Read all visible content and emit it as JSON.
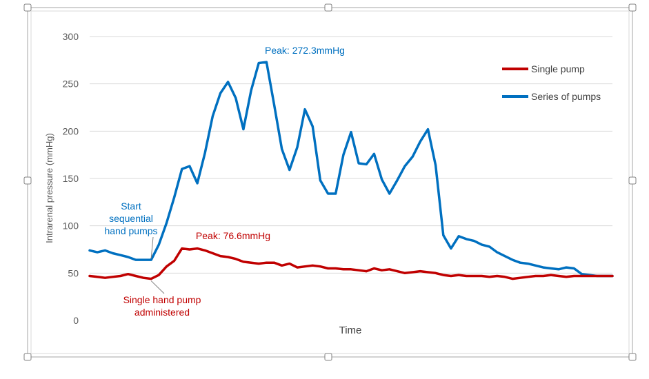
{
  "chart_data": {
    "type": "line",
    "title": "",
    "xlabel": "Time",
    "ylabel": "Intrarenal pressure (mmHg)",
    "ylim": [
      0,
      300
    ],
    "yticks": [
      0,
      50,
      100,
      150,
      200,
      250,
      300
    ],
    "grid": true,
    "legend_position": "top-right",
    "x": [
      0,
      1,
      2,
      3,
      4,
      5,
      6,
      7,
      8,
      9,
      10,
      11,
      12,
      13,
      14,
      15,
      16,
      17,
      18,
      19,
      20,
      21,
      22,
      23,
      24,
      25,
      26,
      27,
      28,
      29,
      30,
      31,
      32,
      33,
      34,
      35,
      36,
      37,
      38,
      39,
      40,
      41,
      42,
      43,
      44,
      45,
      46,
      47,
      48,
      49,
      50,
      51,
      52,
      53,
      54,
      55,
      56,
      57,
      58,
      59,
      60,
      61,
      62,
      63,
      64,
      65,
      66,
      67,
      68
    ],
    "series": [
      {
        "name": "Single pump",
        "color": "#c00000",
        "values": [
          47,
          46,
          45,
          46,
          47,
          49,
          47,
          45,
          44,
          48,
          57,
          63,
          76,
          75,
          76,
          74,
          71,
          68,
          67,
          65,
          62,
          61,
          60,
          61,
          61,
          58,
          60,
          56,
          57,
          58,
          57,
          55,
          55,
          54,
          54,
          53,
          52,
          55,
          53,
          54,
          52,
          50,
          51,
          52,
          51,
          50,
          48,
          47,
          48,
          47,
          47,
          47,
          46,
          47,
          46,
          44,
          45,
          46,
          47,
          47,
          48,
          47,
          46,
          47,
          47,
          47,
          47,
          47,
          47
        ]
      },
      {
        "name": "Series of pumps",
        "color": "#0070c0",
        "values": [
          74,
          72,
          74,
          71,
          69,
          67,
          64,
          64,
          64,
          80,
          103,
          130,
          160,
          163,
          145,
          177,
          216,
          240,
          252,
          235,
          202,
          243,
          272,
          273,
          228,
          181,
          159,
          183,
          223,
          205,
          148,
          134,
          134,
          175,
          199,
          166,
          165,
          176,
          149,
          134,
          148,
          163,
          173,
          189,
          202,
          164,
          90,
          76,
          89,
          86,
          84,
          80,
          78,
          72,
          68,
          64,
          61,
          60,
          58,
          56,
          55,
          54,
          56,
          55,
          49,
          48,
          47,
          47,
          47
        ]
      }
    ],
    "annotations": [
      {
        "text": "Peak: 272.3mmHg",
        "series": 1,
        "x": 23,
        "y": 272.3,
        "color": "#0070c0"
      },
      {
        "text": "Peak: 76.6mmHg",
        "series": 0,
        "x": 12,
        "y": 76.6,
        "color": "#c00000"
      },
      {
        "lines": [
          "Start",
          "sequential",
          "hand pumps"
        ],
        "series": 1,
        "x": 8,
        "y": 64,
        "color": "#0070c0"
      },
      {
        "lines": [
          "Single hand pump",
          "administered"
        ],
        "series": 0,
        "x": 8,
        "y": 44,
        "color": "#c00000"
      }
    ]
  }
}
